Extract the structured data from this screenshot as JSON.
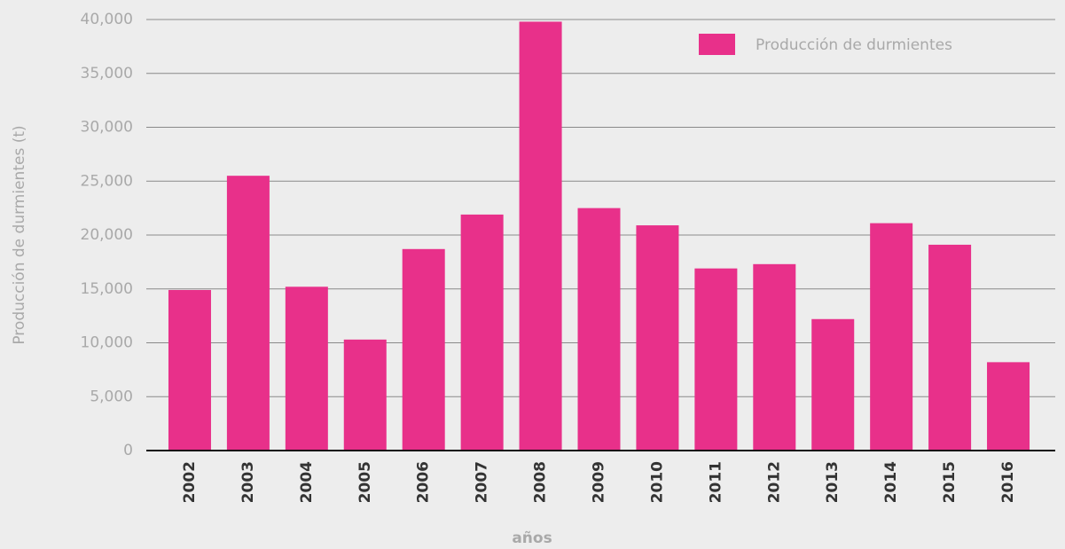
{
  "chart_data": {
    "type": "bar",
    "x_label": "años",
    "y_label": "Producción de durmientes (t)",
    "categories": [
      "2002",
      "2003",
      "2004",
      "2005",
      "2006",
      "2007",
      "2008",
      "2009",
      "2010",
      "2011",
      "2012",
      "2013",
      "2014",
      "2015",
      "2016"
    ],
    "series": [
      {
        "name": "Producción de durmientes",
        "color": "#e8308a",
        "values": [
          14900,
          25500,
          15200,
          10300,
          18700,
          21900,
          39800,
          22500,
          20900,
          16900,
          17300,
          12200,
          21100,
          19100,
          8200
        ]
      }
    ],
    "ylim": [
      0,
      40000
    ],
    "yticks": [
      0,
      {
        "value": 5000,
        "label": "5,000"
      },
      {
        "value": 10000,
        "label": "10,000"
      },
      {
        "value": 15000,
        "label": "15,000"
      },
      {
        "value": 20000,
        "label": "20,000"
      },
      {
        "value": 25000,
        "label": "25,000"
      },
      {
        "value": 30000,
        "label": "30,000"
      },
      {
        "value": 35000,
        "label": "35,000"
      },
      {
        "value": 40000,
        "label": "40,000"
      }
    ],
    "grid": true,
    "legend": "top-right"
  }
}
